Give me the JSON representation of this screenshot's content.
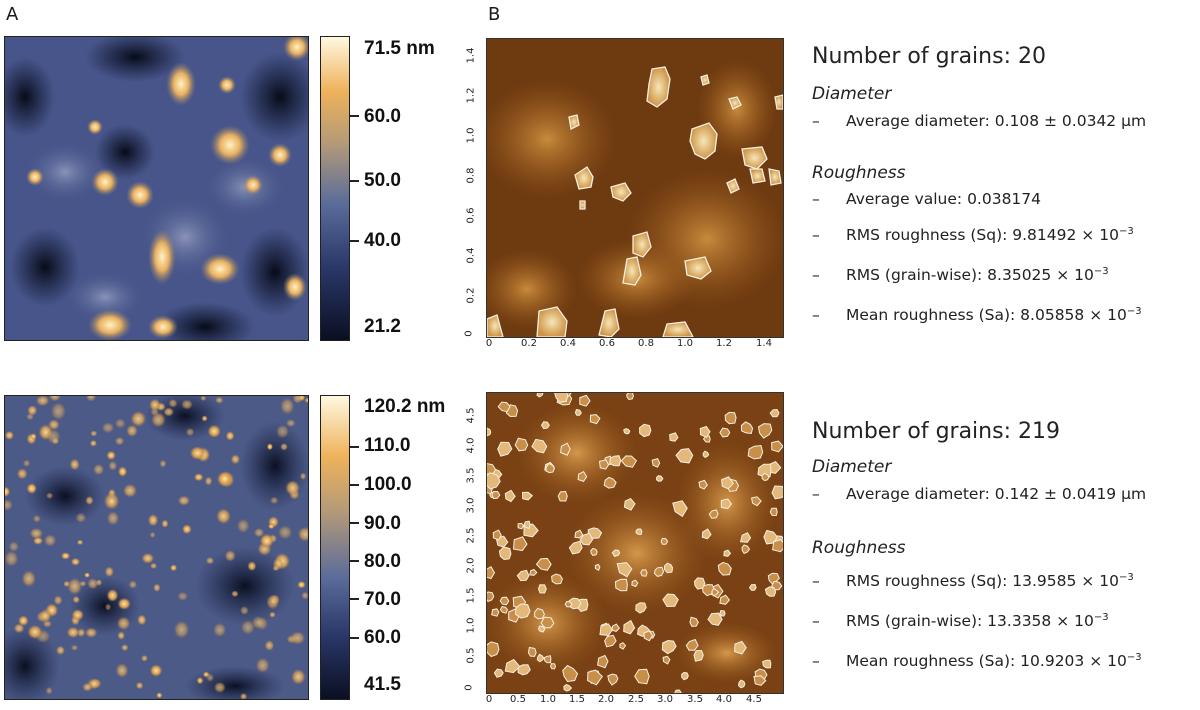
{
  "panels": {
    "a": "A",
    "b": "B"
  },
  "top": {
    "colorbar": {
      "max": "71.5 nm",
      "ticks": [
        "60.0",
        "50.0",
        "40.0",
        "21.2"
      ]
    },
    "grain_plot": {
      "x_ticks": [
        "0",
        "0.2",
        "0.4",
        "0.6",
        "0.8",
        "1.0",
        "1.2",
        "1.4"
      ],
      "y_ticks": [
        "0",
        "0.2",
        "0.4",
        "0.6",
        "0.8",
        "1.0",
        "1.2",
        "1.4"
      ]
    },
    "summary": {
      "title": "Number of grains: 20",
      "diameter_head": "Diameter",
      "diameter_dash": "–",
      "diameter": "Average diameter: 0.108 ± 0.0342 μm",
      "roughness_head": "Roughness",
      "items": [
        {
          "dash": "–",
          "text": "Average value: 0.038174",
          "exp": ""
        },
        {
          "dash": "–",
          "text": "RMS roughness (Sq): 9.81492 × 10",
          "exp": "−3"
        },
        {
          "dash": "–",
          "text": "RMS (grain-wise): 8.35025 × 10",
          "exp": "−3"
        },
        {
          "dash": "–",
          "text": "Mean roughness (Sa): 8.05858 × 10",
          "exp": "−3"
        }
      ]
    }
  },
  "bottom": {
    "colorbar": {
      "max": "120.2 nm",
      "ticks": [
        "110.0",
        "100.0",
        "90.0",
        "80.0",
        "70.0",
        "60.0",
        "41.5"
      ]
    },
    "grain_plot": {
      "x_ticks": [
        "0",
        "0.5",
        "1.0",
        "1.5",
        "2.0",
        "2.5",
        "3.0",
        "3.5",
        "4.0",
        "4.5"
      ],
      "y_ticks": [
        "0",
        "0.5",
        "1.0",
        "1.5",
        "2.0",
        "2.5",
        "3.0",
        "3.5",
        "4.0",
        "4.5"
      ]
    },
    "summary": {
      "title": "Number of grains: 219",
      "diameter_head": "Diameter",
      "diameter_dash": "–",
      "diameter": "Average diameter: 0.142 ± 0.0419 μm",
      "roughness_head": "Roughness",
      "items": [
        {
          "dash": "–",
          "text": "RMS roughness (Sq): 13.9585 × 10",
          "exp": "−3"
        },
        {
          "dash": "–",
          "text": "RMS (grain-wise): 13.3358 × 10",
          "exp": "−3"
        },
        {
          "dash": "–",
          "text": "Mean roughness (Sa): 10.9203 × 10",
          "exp": "−3"
        }
      ]
    }
  },
  "colors": {
    "afm_dark": "#0f1730",
    "afm_mid": "#4a5a8c",
    "afm_bright": "#f0c070",
    "grain_bg_dark": "#3a1c05",
    "grain_bg_mid": "#9a5a1c",
    "grain_outline": "#f4efe4"
  }
}
